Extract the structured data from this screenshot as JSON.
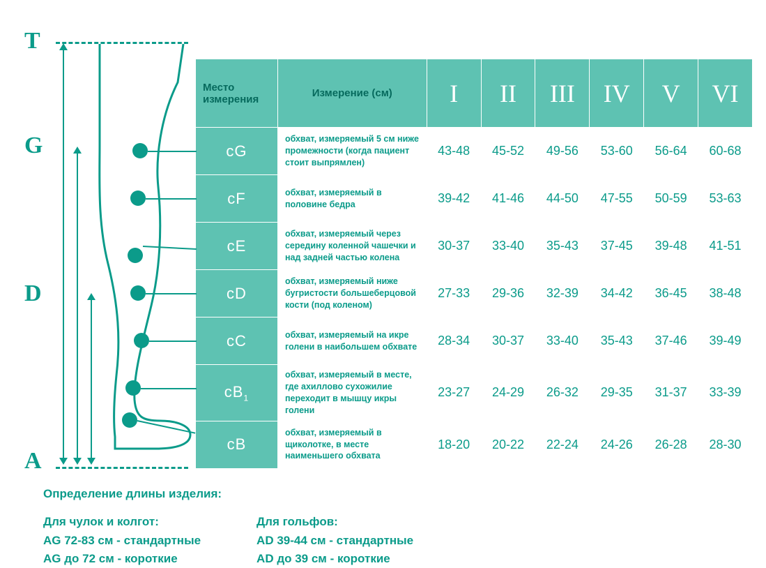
{
  "colors": {
    "teal": "#0b9b8a",
    "header_bg": "#5ec2b2",
    "white": "#ffffff"
  },
  "diagram": {
    "letters": {
      "T": "T",
      "G": "G",
      "D": "D",
      "A": "A"
    }
  },
  "table": {
    "header": {
      "place": "Место измерения",
      "measurement": "Измерение (см)",
      "sizes": [
        "I",
        "II",
        "III",
        "IV",
        "V",
        "VI"
      ]
    },
    "rows": [
      {
        "code": "cG",
        "desc": "обхват, измеряемый 5 см ниже промежности (когда пациент стоит выпрямлен)",
        "vals": [
          "43-48",
          "45-52",
          "49-56",
          "53-60",
          "56-64",
          "60-68"
        ]
      },
      {
        "code": "cF",
        "desc": "обхват, измеряемый в половине бедра",
        "vals": [
          "39-42",
          "41-46",
          "44-50",
          "47-55",
          "50-59",
          "53-63"
        ]
      },
      {
        "code": "cE",
        "desc": "обхват, измеряемый через середину коленной чашечки и над задней частью колена",
        "vals": [
          "30-37",
          "33-40",
          "35-43",
          "37-45",
          "39-48",
          "41-51"
        ]
      },
      {
        "code": "cD",
        "desc": "обхват, измеряемый ниже бугристости большеберцовой кости (под коленом)",
        "vals": [
          "27-33",
          "29-36",
          "32-39",
          "34-42",
          "36-45",
          "38-48"
        ]
      },
      {
        "code": "cC",
        "desc": "обхват, измеряемый на икре голени в наибольшем обхвате",
        "vals": [
          "28-34",
          "30-37",
          "33-40",
          "35-43",
          "37-46",
          "39-49"
        ]
      },
      {
        "code": "cB1",
        "sub": "1",
        "base": "cB",
        "desc": "обхват,  измеряемый в месте, где ахиллово сухожилие переходит в мышцу икры голени",
        "vals": [
          "23-27",
          "24-29",
          "26-32",
          "29-35",
          "31-37",
          "33-39"
        ]
      },
      {
        "code": "cB",
        "desc": "обхват, измеряемый в щиколотке, в месте наименьшего обхвата",
        "vals": [
          "18-20",
          "20-22",
          "22-24",
          "24-26",
          "26-28",
          "28-30"
        ]
      }
    ]
  },
  "footer": {
    "title": "Определение длины изделия:",
    "col1_title": "Для чулок и колгот:",
    "col1_line1": "AG 72-83 см - стандартные",
    "col1_line2": "AG до 72 см - короткие",
    "col2_title": "Для гольфов:",
    "col2_line1": "AD 39-44 см - стандартные",
    "col2_line2": "AD до 39 см - короткие"
  }
}
